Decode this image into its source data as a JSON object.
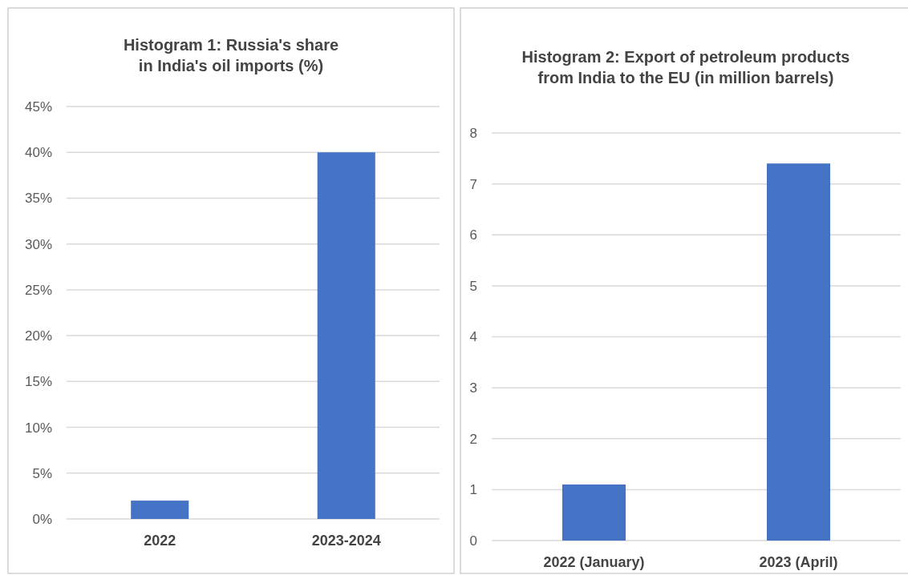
{
  "chart_data": [
    {
      "type": "bar",
      "title": "Histogram 1: Russia's share\nin India's oil imports (%)",
      "categories": [
        "2022",
        "2023-2024"
      ],
      "values": [
        2,
        40
      ],
      "color": "#4472c4",
      "ylim": [
        0,
        45
      ],
      "yticks": [
        {
          "value": 0,
          "label": "0%"
        },
        {
          "value": 5,
          "label": "5%"
        },
        {
          "value": 10,
          "label": "10%"
        },
        {
          "value": 15,
          "label": "15%"
        },
        {
          "value": 20,
          "label": "20%"
        },
        {
          "value": 25,
          "label": "25%"
        },
        {
          "value": 30,
          "label": "30%"
        },
        {
          "value": 35,
          "label": "35%"
        },
        {
          "value": 40,
          "label": "40%"
        },
        {
          "value": 45,
          "label": "45%"
        }
      ],
      "grid": "y"
    },
    {
      "type": "bar",
      "title": "Histogram 2: Export of petroleum products\nfrom India to the EU (in million barrels)",
      "categories": [
        "2022 (January)",
        "2023 (April)"
      ],
      "values": [
        1.1,
        7.4
      ],
      "color": "#4472c4",
      "ylim": [
        0,
        8
      ],
      "yticks": [
        0,
        1,
        2,
        3,
        4,
        5,
        6,
        7,
        8
      ],
      "grid": "y"
    }
  ]
}
